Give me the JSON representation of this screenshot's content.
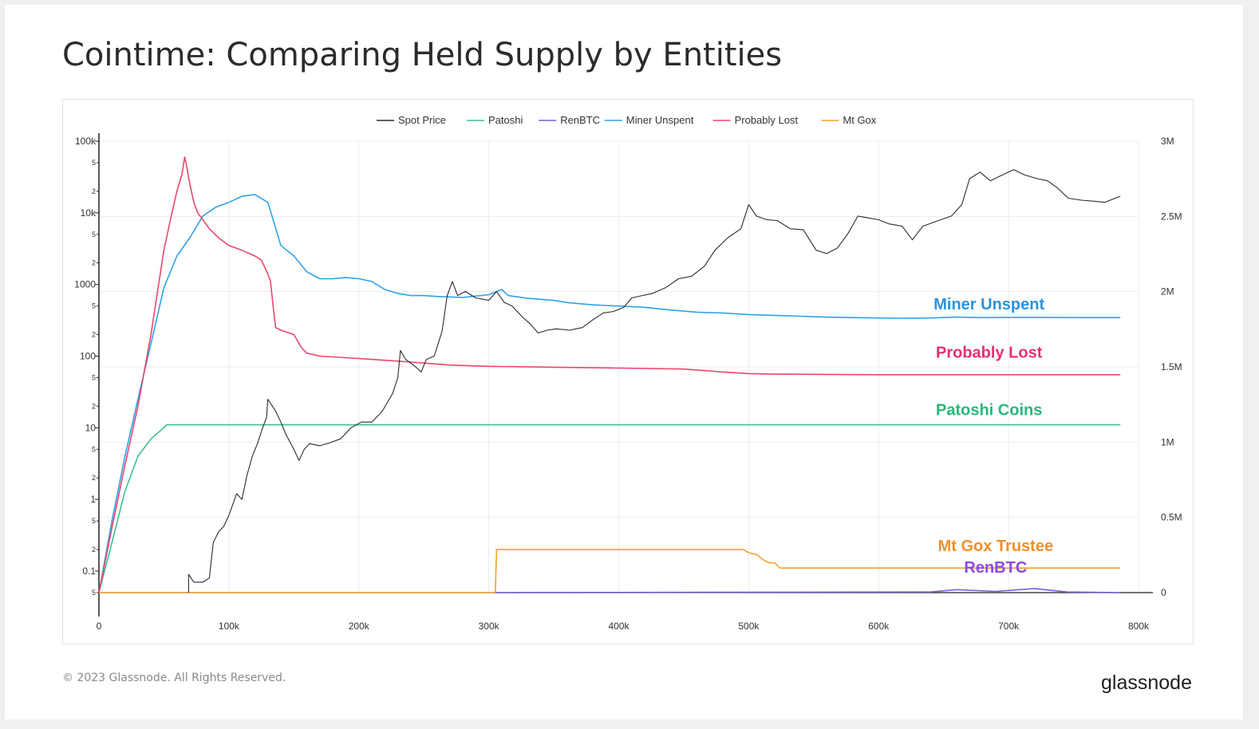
{
  "page": {
    "title": "Cointime: Comparing Held Supply by Entities",
    "copyright": "© 2023 Glassnode. All Rights Reserved.",
    "logo_text": "glassnode"
  },
  "chart_data": {
    "type": "line",
    "title": "Cointime: Comparing Held Supply by Entities",
    "legend_position": "top-center",
    "grid": true,
    "x_axis": {
      "range": [
        0,
        800000
      ],
      "ticks": [
        0,
        100000,
        200000,
        300000,
        400000,
        500000,
        600000,
        700000,
        800000
      ],
      "tick_labels": [
        "0",
        "100k",
        "200k",
        "300k",
        "400k",
        "500k",
        "600k",
        "700k",
        "800k"
      ]
    },
    "y_axis_left": {
      "scale": "log",
      "range": [
        0.05,
        100000
      ],
      "major_ticks": [
        0.1,
        1,
        10,
        100,
        1000,
        10000,
        100000
      ],
      "major_labels": [
        "0.1",
        "1",
        "10",
        "100",
        "1000",
        "10k",
        "100k"
      ],
      "minor_ticks": [
        0.05,
        0.2,
        0.5,
        2,
        5,
        20,
        50,
        200,
        500,
        2000,
        5000,
        20000,
        50000
      ],
      "minor_labels": [
        "5",
        "2",
        "5",
        "2",
        "5",
        "2",
        "5",
        "2",
        "5",
        "2",
        "5",
        "2",
        "5"
      ]
    },
    "y_axis_right": {
      "scale": "linear",
      "range": [
        0,
        3000000
      ],
      "ticks": [
        0,
        500000,
        1000000,
        1500000,
        2000000,
        2500000,
        3000000
      ],
      "tick_labels": [
        "0",
        "0.5M",
        "1M",
        "1.5M",
        "2M",
        "2.5M",
        "3M"
      ]
    },
    "series": [
      {
        "name": "Spot Price",
        "color": "#2b2b2b",
        "axis": "left",
        "points": [
          [
            69000,
            0.05
          ],
          [
            69000,
            0.09
          ],
          [
            73000,
            0.07
          ],
          [
            80000,
            0.07
          ],
          [
            85000,
            0.08
          ],
          [
            88000,
            0.25
          ],
          [
            92000,
            0.35
          ],
          [
            96000,
            0.42
          ],
          [
            100000,
            0.6
          ],
          [
            106000,
            1.2
          ],
          [
            110000,
            1.0
          ],
          [
            114000,
            2.2
          ],
          [
            118000,
            4
          ],
          [
            122000,
            6
          ],
          [
            126000,
            10
          ],
          [
            129000,
            14
          ],
          [
            130000,
            25
          ],
          [
            132000,
            22
          ],
          [
            136000,
            17
          ],
          [
            140000,
            12
          ],
          [
            144000,
            8
          ],
          [
            150000,
            5
          ],
          [
            154000,
            3.5
          ],
          [
            158000,
            5
          ],
          [
            162000,
            6
          ],
          [
            170000,
            5.6
          ],
          [
            178000,
            6.2
          ],
          [
            186000,
            7
          ],
          [
            194000,
            10
          ],
          [
            202000,
            12
          ],
          [
            210000,
            12
          ],
          [
            218000,
            17
          ],
          [
            226000,
            30
          ],
          [
            230000,
            50
          ],
          [
            232000,
            120
          ],
          [
            236000,
            90
          ],
          [
            240000,
            80
          ],
          [
            244000,
            70
          ],
          [
            248000,
            60
          ],
          [
            252000,
            90
          ],
          [
            258000,
            100
          ],
          [
            264000,
            220
          ],
          [
            268000,
            700
          ],
          [
            272000,
            1100
          ],
          [
            276000,
            700
          ],
          [
            282000,
            800
          ],
          [
            290000,
            650
          ],
          [
            300000,
            600
          ],
          [
            306000,
            800
          ],
          [
            312000,
            560
          ],
          [
            318000,
            500
          ],
          [
            326000,
            350
          ],
          [
            332000,
            280
          ],
          [
            338000,
            210
          ],
          [
            345000,
            230
          ],
          [
            352000,
            240
          ],
          [
            362000,
            230
          ],
          [
            372000,
            250
          ],
          [
            380000,
            320
          ],
          [
            388000,
            400
          ],
          [
            396000,
            420
          ],
          [
            404000,
            480
          ],
          [
            410000,
            650
          ],
          [
            418000,
            700
          ],
          [
            426000,
            750
          ],
          [
            436000,
            900
          ],
          [
            446000,
            1200
          ],
          [
            456000,
            1300
          ],
          [
            466000,
            1800
          ],
          [
            474000,
            3000
          ],
          [
            484000,
            4500
          ],
          [
            494000,
            6000
          ],
          [
            500000,
            13000
          ],
          [
            506000,
            9000
          ],
          [
            514000,
            8000
          ],
          [
            522000,
            7800
          ],
          [
            532000,
            6000
          ],
          [
            542000,
            5800
          ],
          [
            552000,
            3000
          ],
          [
            560000,
            2700
          ],
          [
            568000,
            3200
          ],
          [
            576000,
            5000
          ],
          [
            584000,
            9000
          ],
          [
            592000,
            8500
          ],
          [
            600000,
            8000
          ],
          [
            608000,
            7000
          ],
          [
            618000,
            6500
          ],
          [
            626000,
            4200
          ],
          [
            634000,
            6500
          ],
          [
            646000,
            7800
          ],
          [
            656000,
            9000
          ],
          [
            664000,
            13000
          ],
          [
            670000,
            30000
          ],
          [
            678000,
            37000
          ],
          [
            686000,
            28000
          ],
          [
            694000,
            33000
          ],
          [
            704000,
            40000
          ],
          [
            712000,
            34000
          ],
          [
            722000,
            30000
          ],
          [
            730000,
            28000
          ],
          [
            738000,
            22000
          ],
          [
            746000,
            16000
          ],
          [
            756000,
            15000
          ],
          [
            766000,
            14500
          ],
          [
            774000,
            14000
          ],
          [
            782000,
            16000
          ],
          [
            786000,
            17000
          ]
        ]
      },
      {
        "name": "Patoshi",
        "color": "#3bc08f",
        "axis": "left",
        "points": [
          [
            0,
            0.05
          ],
          [
            10000,
            0.25
          ],
          [
            20000,
            1.3
          ],
          [
            30000,
            4
          ],
          [
            40000,
            7
          ],
          [
            50000,
            10
          ],
          [
            52000,
            11
          ],
          [
            786000,
            11
          ]
        ]
      },
      {
        "name": "RenBTC",
        "color": "#7b5bdc",
        "axis": "left",
        "points": [
          [
            305000,
            0.05
          ],
          [
            640000,
            0.051
          ],
          [
            660000,
            0.055
          ],
          [
            690000,
            0.052
          ],
          [
            720000,
            0.057
          ],
          [
            745000,
            0.051
          ],
          [
            786000,
            0.05
          ]
        ]
      },
      {
        "name": "Miner Unspent",
        "color": "#2ea3e6",
        "axis": "left",
        "points": [
          [
            0,
            0.05
          ],
          [
            10000,
            0.5
          ],
          [
            20000,
            4
          ],
          [
            30000,
            25
          ],
          [
            40000,
            150
          ],
          [
            50000,
            900
          ],
          [
            60000,
            2500
          ],
          [
            70000,
            4500
          ],
          [
            80000,
            9000
          ],
          [
            90000,
            12000
          ],
          [
            100000,
            14000
          ],
          [
            110000,
            17000
          ],
          [
            120000,
            18000
          ],
          [
            130000,
            14000
          ],
          [
            135000,
            7000
          ],
          [
            140000,
            3500
          ],
          [
            150000,
            2500
          ],
          [
            160000,
            1500
          ],
          [
            170000,
            1200
          ],
          [
            180000,
            1200
          ],
          [
            190000,
            1250
          ],
          [
            200000,
            1200
          ],
          [
            210000,
            1100
          ],
          [
            220000,
            850
          ],
          [
            230000,
            750
          ],
          [
            240000,
            700
          ],
          [
            250000,
            700
          ],
          [
            260000,
            680
          ],
          [
            280000,
            660
          ],
          [
            300000,
            720
          ],
          [
            310000,
            850
          ],
          [
            315000,
            700
          ],
          [
            330000,
            640
          ],
          [
            350000,
            600
          ],
          [
            360000,
            560
          ],
          [
            380000,
            520
          ],
          [
            400000,
            500
          ],
          [
            420000,
            480
          ],
          [
            440000,
            440
          ],
          [
            460000,
            410
          ],
          [
            480000,
            400
          ],
          [
            500000,
            380
          ],
          [
            520000,
            370
          ],
          [
            540000,
            360
          ],
          [
            560000,
            350
          ],
          [
            580000,
            345
          ],
          [
            600000,
            340
          ],
          [
            620000,
            338
          ],
          [
            640000,
            340
          ],
          [
            660000,
            350
          ],
          [
            680000,
            345
          ],
          [
            700000,
            347
          ],
          [
            720000,
            347
          ],
          [
            740000,
            346
          ],
          [
            760000,
            345
          ],
          [
            786000,
            345
          ]
        ]
      },
      {
        "name": "Probably Lost",
        "color": "#e8476e",
        "axis": "left",
        "points": [
          [
            0,
            0.05
          ],
          [
            10000,
            0.4
          ],
          [
            20000,
            3
          ],
          [
            30000,
            20
          ],
          [
            40000,
            200
          ],
          [
            50000,
            3000
          ],
          [
            55000,
            8000
          ],
          [
            60000,
            20000
          ],
          [
            64000,
            35000
          ],
          [
            66000,
            60000
          ],
          [
            67000,
            50000
          ],
          [
            70000,
            25000
          ],
          [
            73000,
            14000
          ],
          [
            76000,
            10000
          ],
          [
            80000,
            8000
          ],
          [
            85000,
            6000
          ],
          [
            92000,
            4500
          ],
          [
            100000,
            3500
          ],
          [
            110000,
            3000
          ],
          [
            120000,
            2500
          ],
          [
            125000,
            2200
          ],
          [
            130000,
            1400
          ],
          [
            132000,
            1100
          ],
          [
            134000,
            500
          ],
          [
            136000,
            250
          ],
          [
            140000,
            230
          ],
          [
            150000,
            200
          ],
          [
            156000,
            130
          ],
          [
            160000,
            110
          ],
          [
            170000,
            100
          ],
          [
            190000,
            95
          ],
          [
            210000,
            90
          ],
          [
            230000,
            85
          ],
          [
            250000,
            80
          ],
          [
            270000,
            75
          ],
          [
            300000,
            72
          ],
          [
            350000,
            70
          ],
          [
            400000,
            68
          ],
          [
            450000,
            66
          ],
          [
            480000,
            60
          ],
          [
            500000,
            57
          ],
          [
            520000,
            56
          ],
          [
            600000,
            55
          ],
          [
            700000,
            55
          ],
          [
            786000,
            55
          ]
        ]
      },
      {
        "name": "Mt Gox",
        "color": "#f5a030",
        "axis": "left",
        "points": [
          [
            0,
            0.05
          ],
          [
            305000,
            0.05
          ],
          [
            306000,
            0.2
          ],
          [
            496000,
            0.2
          ],
          [
            500000,
            0.18
          ],
          [
            506000,
            0.17
          ],
          [
            512000,
            0.14
          ],
          [
            516000,
            0.13
          ],
          [
            520000,
            0.13
          ],
          [
            524000,
            0.11
          ],
          [
            786000,
            0.11
          ]
        ]
      }
    ],
    "annotations": [
      {
        "text": "Miner Unspent",
        "color": "#2a93dd",
        "x": 685000,
        "y": 450
      },
      {
        "text": "Probably Lost",
        "color": "#e8306a",
        "x": 685000,
        "y": 95
      },
      {
        "text": "Patoshi Coins",
        "color": "#2bb67a",
        "x": 685000,
        "y": 15
      },
      {
        "text": "Mt Gox Trustee",
        "color": "#f0902a",
        "x": 690000,
        "y": 0.19
      },
      {
        "text": "RenBTC",
        "color": "#8f48e0",
        "x": 690000,
        "y": 0.095
      }
    ]
  }
}
